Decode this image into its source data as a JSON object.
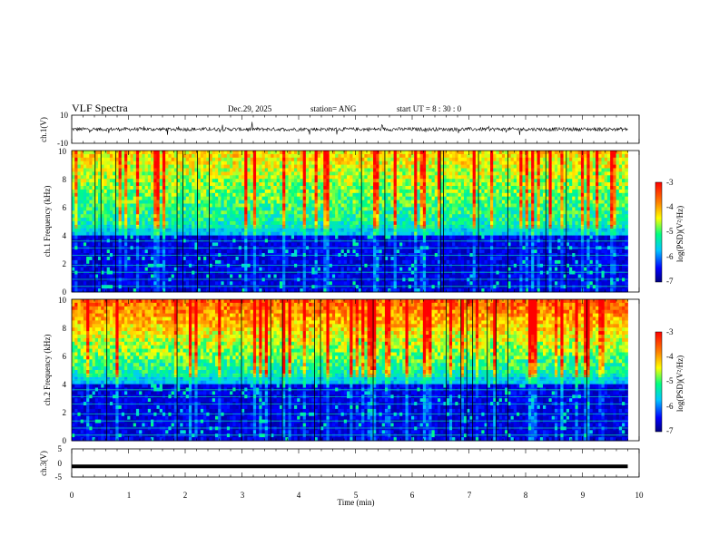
{
  "header": {
    "title": "VLF Spectra",
    "date": "Dec.29, 2025",
    "station": "station= ANG",
    "start": "start  UT  =   8  : 30 : 0"
  },
  "chart_data": [
    {
      "type": "line",
      "panel": "ch1-waveform",
      "ylabel": "ch.1(V)",
      "ylim": [
        -10,
        10
      ],
      "yticks": [
        "10",
        "-10"
      ],
      "xlim": [
        0,
        10
      ],
      "trace_level": 0,
      "trace_noise": 2.5
    },
    {
      "type": "heatmap",
      "panel": "ch1-spectrogram",
      "ylabel": "ch.1 Frequency (kHz)",
      "ylim": [
        0,
        10
      ],
      "yticks": [
        "0",
        "2",
        "4",
        "6",
        "8",
        "10"
      ],
      "xlim": [
        0,
        9.8
      ],
      "colorbar": {
        "label": "log(PSD)(V²/Hz)",
        "range": [
          -7,
          -3
        ],
        "ticks": [
          "-3",
          "-4",
          "-5",
          "-6",
          "-7"
        ]
      }
    },
    {
      "type": "heatmap",
      "panel": "ch2-spectrogram",
      "ylabel": "ch.2 Frequency (kHz)",
      "ylim": [
        0,
        10
      ],
      "yticks": [
        "0",
        "2",
        "4",
        "6",
        "8",
        "10"
      ],
      "xlim": [
        0,
        9.8
      ],
      "colorbar": {
        "label": "log(PSD)(V²/Hz)",
        "range": [
          -7,
          -3
        ],
        "ticks": [
          "-3",
          "-4",
          "-5",
          "-6",
          "-7"
        ]
      }
    },
    {
      "type": "line",
      "panel": "ch3-waveform",
      "ylabel": "ch.3(V)",
      "ylim": [
        -5,
        5
      ],
      "yticks": [
        "5",
        "0",
        "-5"
      ],
      "xlim": [
        0,
        10
      ],
      "trace_level": -1.2
    }
  ],
  "xaxis": {
    "label": "Time  (min)",
    "ticks": [
      "0",
      "1",
      "2",
      "3",
      "4",
      "5",
      "6",
      "7",
      "8",
      "9",
      "10"
    ]
  },
  "colors": {
    "colormap": [
      "#000080",
      "#0000ff",
      "#00c8ff",
      "#00ff80",
      "#ffff00",
      "#ff8000",
      "#ff0000"
    ]
  }
}
